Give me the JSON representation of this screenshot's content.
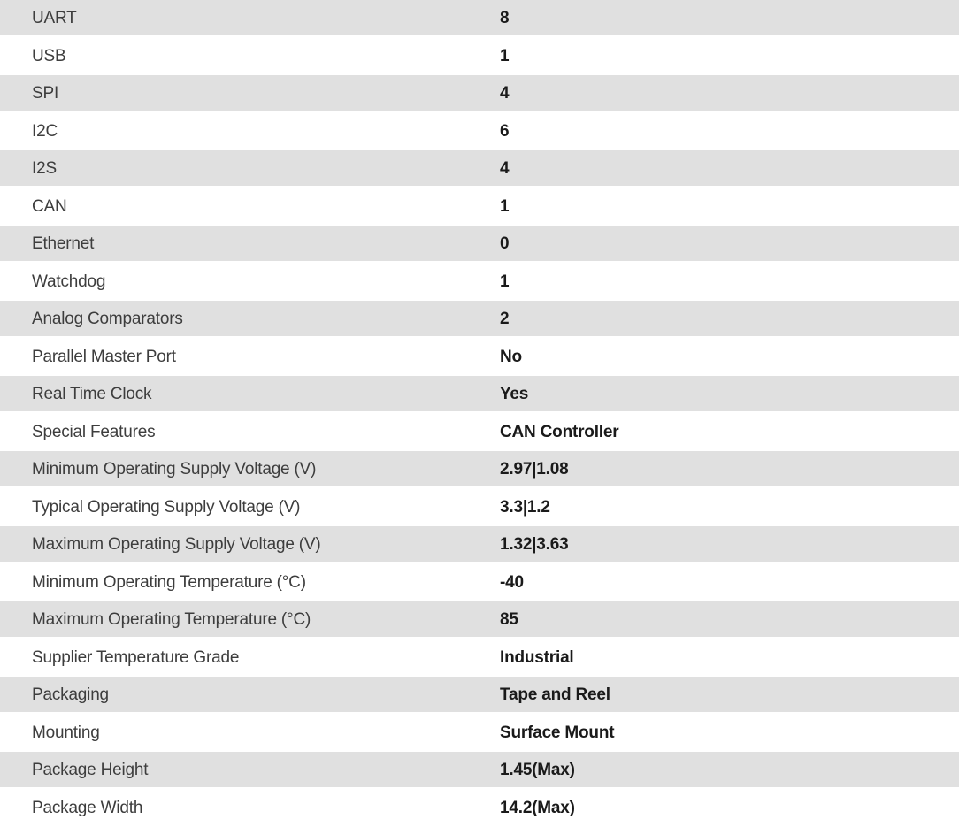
{
  "table": {
    "colors": {
      "stripe_background": "#e0e0e0",
      "row_background": "#ffffff",
      "label_text": "#3d3d3d",
      "value_text": "#1a1a1a"
    },
    "rows": [
      {
        "label": "UART",
        "value": "8"
      },
      {
        "label": "USB",
        "value": "1"
      },
      {
        "label": "SPI",
        "value": "4"
      },
      {
        "label": "I2C",
        "value": "6"
      },
      {
        "label": "I2S",
        "value": "4"
      },
      {
        "label": "CAN",
        "value": "1"
      },
      {
        "label": "Ethernet",
        "value": "0"
      },
      {
        "label": "Watchdog",
        "value": "1"
      },
      {
        "label": "Analog Comparators",
        "value": "2"
      },
      {
        "label": "Parallel Master Port",
        "value": "No"
      },
      {
        "label": "Real Time Clock",
        "value": "Yes"
      },
      {
        "label": "Special Features",
        "value": "CAN Controller"
      },
      {
        "label": "Minimum Operating Supply Voltage (V)",
        "value": "2.97|1.08"
      },
      {
        "label": "Typical Operating Supply Voltage (V)",
        "value": "3.3|1.2"
      },
      {
        "label": "Maximum Operating Supply Voltage (V)",
        "value": "1.32|3.63"
      },
      {
        "label": "Minimum Operating Temperature (°C)",
        "value": "-40"
      },
      {
        "label": "Maximum Operating Temperature (°C)",
        "value": "85"
      },
      {
        "label": "Supplier Temperature Grade",
        "value": "Industrial"
      },
      {
        "label": "Packaging",
        "value": "Tape and Reel"
      },
      {
        "label": "Mounting",
        "value": "Surface Mount"
      },
      {
        "label": "Package Height",
        "value": "1.45(Max)"
      },
      {
        "label": "Package Width",
        "value": "14.2(Max)"
      }
    ]
  }
}
